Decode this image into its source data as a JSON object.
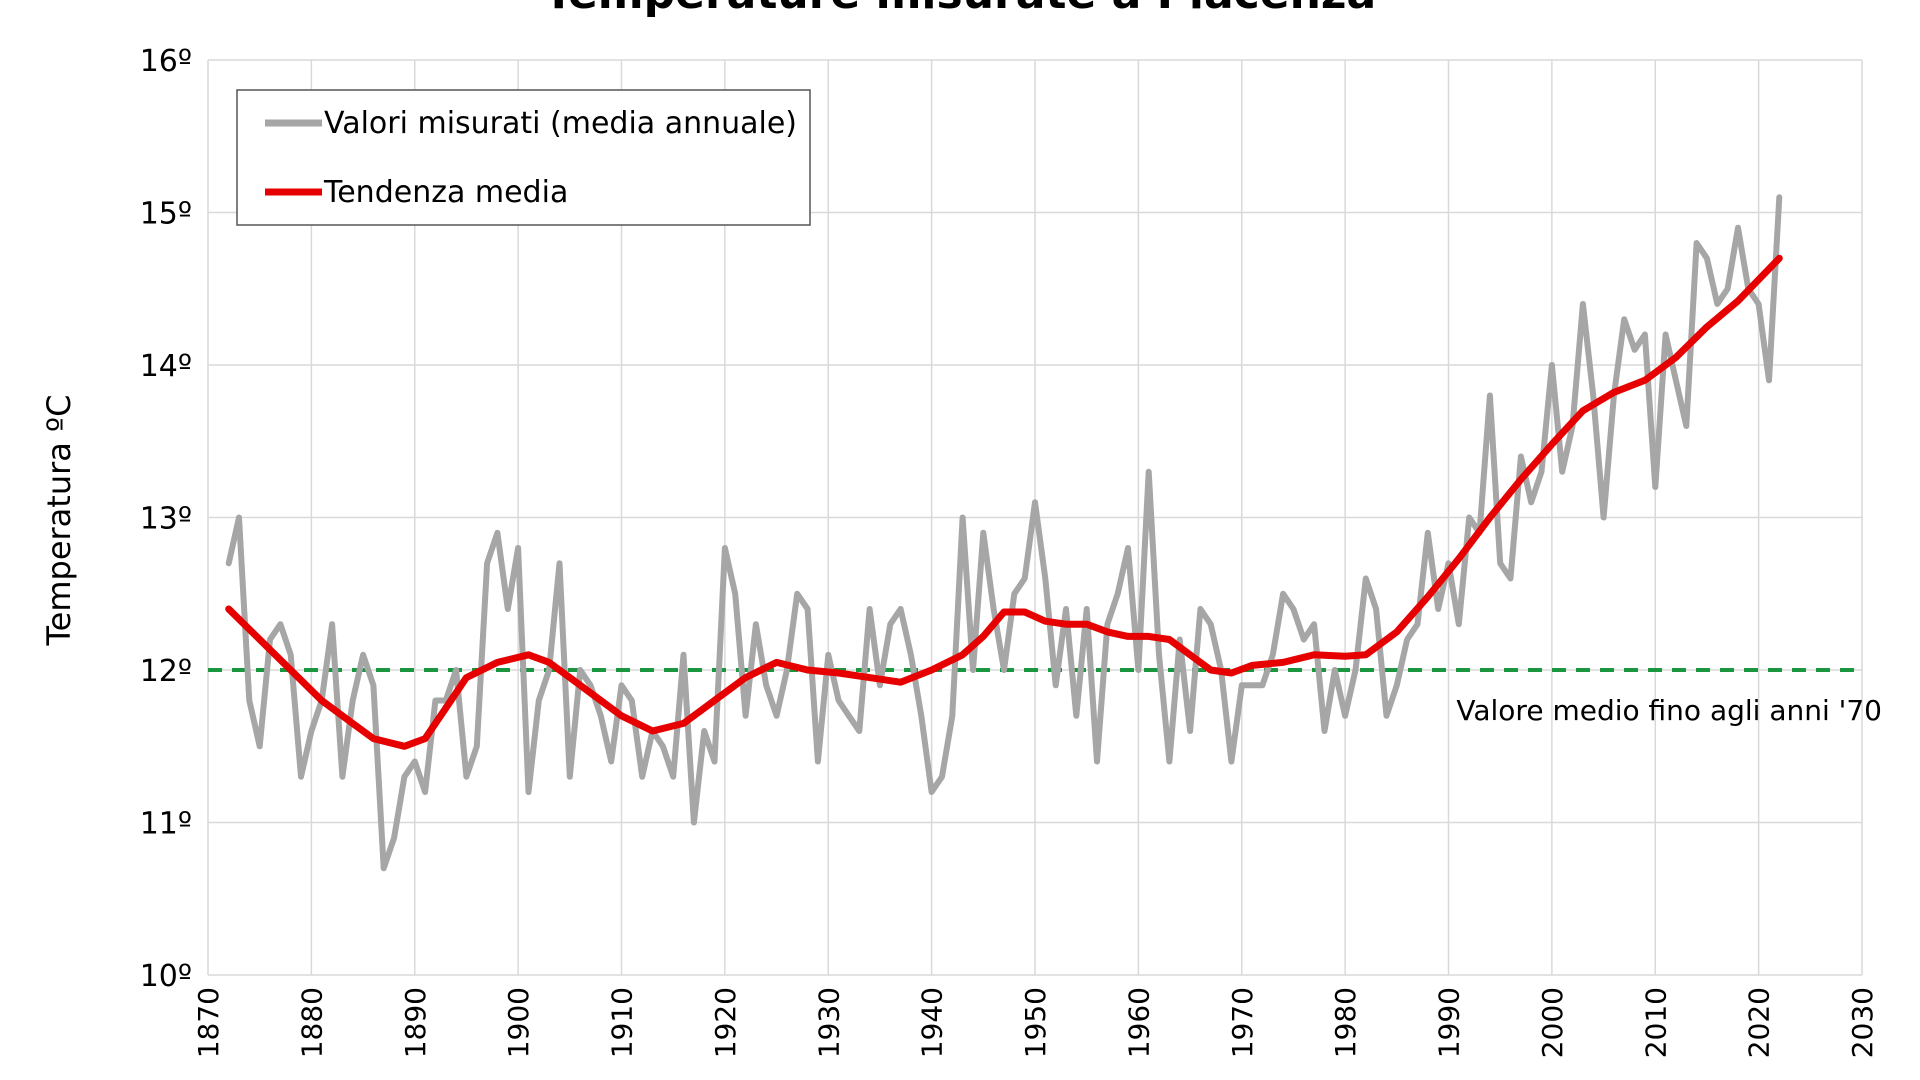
{
  "chart_data": {
    "type": "line",
    "title": "Temperature misurate a Piacenza",
    "xlabel": "",
    "ylabel": "Temperatura ºC",
    "xlim": [
      1870,
      2030
    ],
    "ylim": [
      10,
      16
    ],
    "x_ticks": [
      "1870",
      "1880",
      "1890",
      "1900",
      "1910",
      "1920",
      "1930",
      "1940",
      "1950",
      "1960",
      "1970",
      "1980",
      "1990",
      "2000",
      "2010",
      "2020",
      "2030"
    ],
    "y_ticks": [
      "10º",
      "11º",
      "12º",
      "13º",
      "14º",
      "15º",
      "16º"
    ],
    "grid": true,
    "legend_position": "top-left",
    "series": [
      {
        "name": "Valori misurati (media annuale)",
        "color": "#a6a6a6",
        "x": [
          1872,
          1873,
          1874,
          1875,
          1876,
          1877,
          1878,
          1879,
          1880,
          1881,
          1882,
          1883,
          1884,
          1885,
          1886,
          1887,
          1888,
          1889,
          1890,
          1891,
          1892,
          1893,
          1894,
          1895,
          1896,
          1897,
          1898,
          1899,
          1900,
          1901,
          1902,
          1903,
          1904,
          1905,
          1906,
          1907,
          1908,
          1909,
          1910,
          1911,
          1912,
          1913,
          1914,
          1915,
          1916,
          1917,
          1918,
          1919,
          1920,
          1921,
          1922,
          1923,
          1924,
          1925,
          1926,
          1927,
          1928,
          1929,
          1930,
          1931,
          1932,
          1933,
          1934,
          1935,
          1936,
          1937,
          1938,
          1939,
          1940,
          1941,
          1942,
          1943,
          1944,
          1945,
          1946,
          1947,
          1948,
          1949,
          1950,
          1951,
          1952,
          1953,
          1954,
          1955,
          1956,
          1957,
          1958,
          1959,
          1960,
          1961,
          1962,
          1963,
          1964,
          1965,
          1966,
          1967,
          1968,
          1969,
          1970,
          1971,
          1972,
          1973,
          1974,
          1975,
          1976,
          1977,
          1978,
          1979,
          1980,
          1981,
          1982,
          1983,
          1984,
          1985,
          1986,
          1987,
          1988,
          1989,
          1990,
          1991,
          1992,
          1993,
          1994,
          1995,
          1996,
          1997,
          1998,
          1999,
          2000,
          2001,
          2002,
          2003,
          2004,
          2005,
          2006,
          2007,
          2008,
          2009,
          2010,
          2011,
          2012,
          2013,
          2014,
          2015,
          2016,
          2017,
          2018,
          2019,
          2020,
          2021,
          2022
        ],
        "y": [
          12.7,
          13.0,
          11.8,
          11.5,
          12.2,
          12.3,
          12.1,
          11.3,
          11.6,
          11.8,
          12.3,
          11.3,
          11.8,
          12.1,
          11.9,
          10.7,
          10.9,
          11.3,
          11.4,
          11.2,
          11.8,
          11.8,
          12.0,
          11.3,
          11.5,
          12.7,
          12.9,
          12.4,
          12.8,
          11.2,
          11.8,
          12.0,
          12.7,
          11.3,
          12.0,
          11.9,
          11.7,
          11.4,
          11.9,
          11.8,
          11.3,
          11.6,
          11.5,
          11.3,
          12.1,
          11.0,
          11.6,
          11.4,
          12.8,
          12.5,
          11.7,
          12.3,
          11.9,
          11.7,
          12.0,
          12.5,
          12.4,
          11.4,
          12.1,
          11.8,
          11.7,
          11.6,
          12.4,
          11.9,
          12.3,
          12.4,
          12.1,
          11.7,
          11.2,
          11.3,
          11.7,
          13.0,
          12.0,
          12.9,
          12.4,
          12.0,
          12.5,
          12.6,
          13.1,
          12.6,
          11.9,
          12.4,
          11.7,
          12.4,
          11.4,
          12.3,
          12.5,
          12.8,
          12.0,
          13.3,
          12.1,
          11.4,
          12.2,
          11.6,
          12.4,
          12.3,
          12.0,
          11.4,
          11.9,
          11.9,
          11.9,
          12.1,
          12.5,
          12.4,
          12.2,
          12.3,
          11.6,
          12.0,
          11.7,
          12.0,
          12.6,
          12.4,
          11.7,
          11.9,
          12.2,
          12.3,
          12.9,
          12.4,
          12.7,
          12.3,
          13.0,
          12.9,
          13.8,
          12.7,
          12.6,
          13.4,
          13.1,
          13.3,
          14.0,
          13.3,
          13.6,
          14.4,
          13.8,
          13.0,
          13.8,
          14.3,
          14.1,
          14.2,
          13.2,
          14.2,
          13.9,
          13.6,
          14.8,
          14.7,
          14.4,
          14.5,
          14.9,
          14.5,
          14.4,
          13.9,
          15.1
        ]
      },
      {
        "name": "Tendenza media",
        "color": "#e60000",
        "x": [
          1872,
          1875,
          1878,
          1881,
          1884,
          1886,
          1889,
          1891,
          1893,
          1895,
          1898,
          1901,
          1903,
          1905,
          1908,
          1910,
          1913,
          1916,
          1919,
          1922,
          1925,
          1928,
          1931,
          1934,
          1937,
          1940,
          1943,
          1945,
          1947,
          1949,
          1951,
          1953,
          1955,
          1957,
          1959,
          1961,
          1963,
          1965,
          1967,
          1969,
          1971,
          1974,
          1977,
          1980,
          1982,
          1985,
          1988,
          1991,
          1994,
          1997,
          2000,
          2003,
          2006,
          2009,
          2012,
          2015,
          2018,
          2022
        ],
        "y": [
          12.4,
          12.2,
          12.0,
          11.8,
          11.65,
          11.55,
          11.5,
          11.55,
          11.75,
          11.95,
          12.05,
          12.1,
          12.05,
          11.95,
          11.8,
          11.7,
          11.6,
          11.65,
          11.8,
          11.95,
          12.05,
          12.0,
          11.98,
          11.95,
          11.92,
          12.0,
          12.1,
          12.22,
          12.38,
          12.38,
          12.32,
          12.3,
          12.3,
          12.25,
          12.22,
          12.22,
          12.2,
          12.1,
          12.0,
          11.98,
          12.03,
          12.05,
          12.1,
          12.09,
          12.1,
          12.25,
          12.48,
          12.73,
          13.0,
          13.25,
          13.48,
          13.7,
          13.82,
          13.9,
          14.05,
          14.25,
          14.42,
          14.7
        ]
      }
    ],
    "reference_line": {
      "y": 12.0,
      "color": "#1a9641",
      "label": "Valore medio fino agli anni '70"
    }
  }
}
